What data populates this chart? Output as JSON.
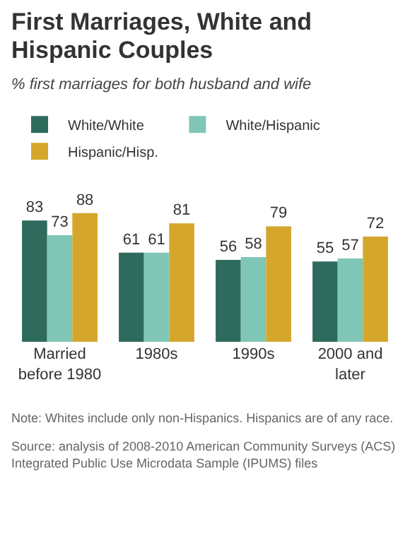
{
  "chart_data": {
    "type": "bar",
    "title": "First Marriages, White and Hispanic Couples",
    "subtitle": "% first marriages for both husband and wife",
    "categories": [
      "Married before 1980",
      "1980s",
      "1990s",
      "2000 and later"
    ],
    "series": [
      {
        "name": "White/White",
        "color": "#2e6b5c",
        "values": [
          83,
          61,
          56,
          55
        ]
      },
      {
        "name": "White/Hispanic",
        "color": "#7fc6b6",
        "values": [
          73,
          61,
          58,
          57
        ]
      },
      {
        "name": "Hispanic/Hisp.",
        "color": "#d4a72c",
        "values": [
          88,
          81,
          79,
          72
        ]
      }
    ],
    "data_labels": true,
    "legend": "top left",
    "grid": false,
    "annotations": [
      "Note: Whites include only non-Hispanics. Hispanics are of any race.",
      "Source: analysis of 2008-2010 American Community Surveys (ACS) Integrated Public Use Microdata Sample (IPUMS) files"
    ]
  }
}
